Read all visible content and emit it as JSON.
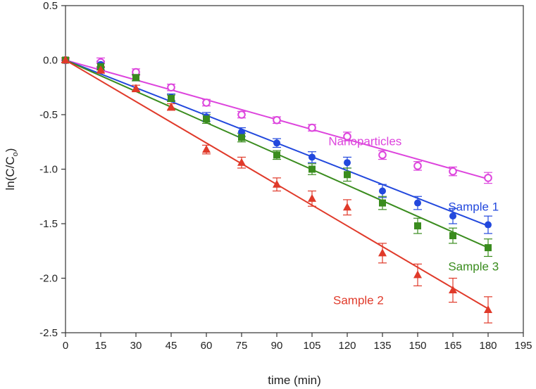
{
  "chart_data": {
    "type": "scatter",
    "title": "",
    "xlabel": "time (min)",
    "ylabel_main": "ln(C/C",
    "ylabel_sub": "o",
    "ylabel_close": ")",
    "xlim": [
      0,
      195
    ],
    "ylim": [
      -2.5,
      0.5
    ],
    "x_ticks": [
      0,
      15,
      30,
      45,
      60,
      75,
      90,
      105,
      120,
      135,
      150,
      165,
      180,
      195
    ],
    "x_tick_labels": [
      "0",
      "15",
      "30",
      "45",
      "60",
      "75",
      "90",
      "105",
      "120",
      "135",
      "150",
      "165",
      "180",
      "195"
    ],
    "y_ticks": [
      0.5,
      0.0,
      -0.5,
      -1.0,
      -1.5,
      -2.0,
      -2.5
    ],
    "y_tick_labels": [
      "0.5",
      "0.0",
      "-0.5",
      "-1.0",
      "-1.5",
      "-2.0",
      "-2.5"
    ],
    "grid": false,
    "x": [
      0,
      15,
      30,
      45,
      60,
      75,
      90,
      105,
      120,
      135,
      150,
      165,
      180
    ],
    "series": [
      {
        "name": "Nanoparticles",
        "color": "#dd44dd",
        "marker": "open-circle",
        "values": [
          0.0,
          -0.02,
          -0.11,
          -0.25,
          -0.39,
          -0.5,
          -0.55,
          -0.62,
          -0.7,
          -0.87,
          -0.97,
          -1.02,
          -1.08
        ],
        "errors": [
          0.02,
          0.04,
          0.03,
          0.03,
          0.03,
          0.03,
          0.03,
          0.03,
          0.04,
          0.04,
          0.04,
          0.04,
          0.05
        ],
        "fit": [
          0.0,
          -1.09
        ],
        "label_x": 112,
        "label_y": -0.78
      },
      {
        "name": "Sample 1",
        "color": "#2248dd",
        "marker": "filled-circle",
        "values": [
          0.0,
          -0.04,
          -0.16,
          -0.34,
          -0.52,
          -0.66,
          -0.76,
          -0.89,
          -0.94,
          -1.2,
          -1.31,
          -1.43,
          -1.51
        ],
        "errors": [
          0.02,
          0.03,
          0.03,
          0.03,
          0.04,
          0.04,
          0.04,
          0.05,
          0.05,
          0.06,
          0.06,
          0.07,
          0.08
        ],
        "fit": [
          0.0,
          -1.52
        ],
        "label_x": 163,
        "label_y": -1.38
      },
      {
        "name": "Sample 3",
        "color": "#3a8c1e",
        "marker": "filled-square",
        "values": [
          0.0,
          -0.06,
          -0.16,
          -0.35,
          -0.54,
          -0.71,
          -0.87,
          -1.0,
          -1.05,
          -1.31,
          -1.52,
          -1.61,
          -1.72
        ],
        "errors": [
          0.02,
          0.03,
          0.03,
          0.03,
          0.04,
          0.04,
          0.04,
          0.05,
          0.06,
          0.06,
          0.07,
          0.07,
          0.08
        ],
        "fit": [
          0.0,
          -1.72
        ],
        "label_x": 163,
        "label_y": -1.93
      },
      {
        "name": "Sample 2",
        "color": "#e03a2a",
        "marker": "filled-triangle",
        "values": [
          0.0,
          -0.09,
          -0.26,
          -0.43,
          -0.82,
          -0.94,
          -1.14,
          -1.27,
          -1.35,
          -1.77,
          -1.97,
          -2.11,
          -2.29
        ],
        "errors": [
          0.02,
          0.03,
          0.03,
          0.03,
          0.04,
          0.05,
          0.06,
          0.07,
          0.07,
          0.09,
          0.1,
          0.11,
          0.12
        ],
        "fit": [
          0.0,
          -2.28
        ],
        "label_x": 114,
        "label_y": -2.24
      }
    ]
  }
}
